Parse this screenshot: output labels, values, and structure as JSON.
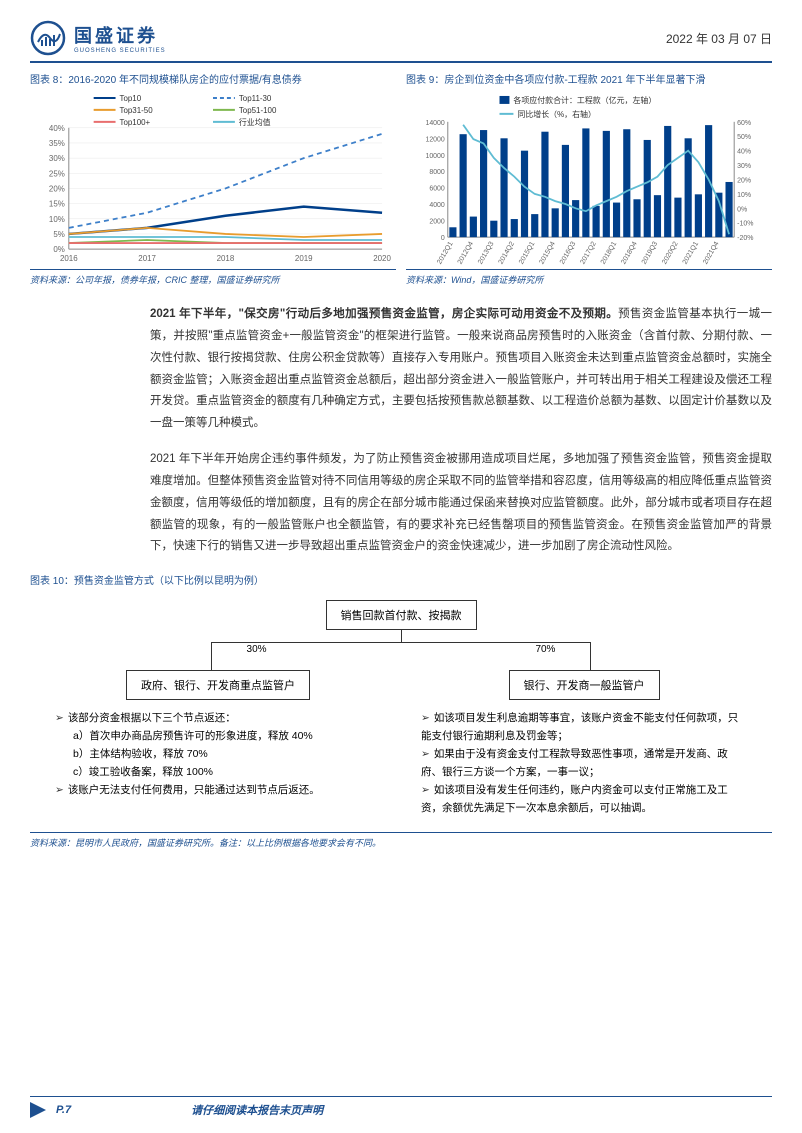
{
  "header": {
    "company": "国盛证券",
    "company_en": "GUOSHENG SECURITIES",
    "date": "2022 年 03 月 07 日"
  },
  "chart8": {
    "title": "图表 8：2016-2020 年不同规模梯队房企的应付票据/有息债券",
    "source": "资料来源：公司年报，债券年报，CRIC 整理，国盛证券研究所",
    "type": "line",
    "x": [
      "2016",
      "2017",
      "2018",
      "2019",
      "2020"
    ],
    "series": [
      {
        "name": "Top10",
        "color": "#003f8a",
        "width": 2.5,
        "values": [
          5,
          7,
          11,
          14,
          12
        ]
      },
      {
        "name": "Top11-30",
        "color": "#3d7fc9",
        "width": 1.8,
        "style": "dashed",
        "values": [
          7,
          12,
          20,
          30,
          38
        ]
      },
      {
        "name": "Top31-50",
        "color": "#e89c2e",
        "width": 1.8,
        "values": [
          5,
          7,
          5,
          4,
          5
        ]
      },
      {
        "name": "Top51-100",
        "color": "#7fb84f",
        "width": 1.8,
        "values": [
          2,
          3,
          2,
          2,
          2
        ]
      },
      {
        "name": "Top100+",
        "color": "#e86e6e",
        "width": 1.8,
        "values": [
          2,
          2,
          2,
          2,
          2
        ]
      },
      {
        "name": "行业均值",
        "color": "#5fbcd3",
        "width": 1.8,
        "values": [
          4,
          4,
          4,
          3,
          3
        ]
      }
    ],
    "ylim": [
      0,
      40
    ],
    "ystep": 5,
    "axis_color": "#888",
    "grid_color": "#e8e8e8",
    "label_fontsize": 8
  },
  "chart9": {
    "title": "图表 9：房企到位资金中各项应付款-工程款 2021 年下半年显著下滑",
    "source": "资料来源：Wind，国盛证券研究所",
    "type": "bar_line",
    "bar_name": "各项应付款合计：工程款（亿元，左轴）",
    "line_name": "同比增长（%，右轴）",
    "bar_color": "#003f8a",
    "line_color": "#5fbcd3",
    "x": [
      "2012Q1",
      "2012Q4",
      "2013Q3",
      "2014Q2",
      "2015Q1",
      "2015Q4",
      "2016Q3",
      "2017Q2",
      "2018Q1",
      "2018Q4",
      "2019Q3",
      "2020Q2",
      "2021Q1",
      "2021Q4"
    ],
    "bars": [
      1200,
      12500,
      2500,
      13000,
      2000,
      12000,
      2200,
      10500,
      2800,
      12800,
      3500,
      11200,
      4500,
      13200,
      3800,
      12900,
      4200,
      13100,
      4600,
      11800,
      5100,
      13500,
      4800,
      12000,
      5200,
      13600,
      5400,
      6700
    ],
    "line": [
      null,
      58,
      48,
      45,
      35,
      28,
      22,
      15,
      10,
      8,
      5,
      3,
      0,
      -2,
      2,
      5,
      8,
      12,
      15,
      18,
      22,
      30,
      35,
      40,
      32,
      20,
      5,
      -18
    ],
    "yleft": [
      0,
      14000
    ],
    "yleft_step": 2000,
    "yright": [
      -20,
      60
    ],
    "yright_step": 10,
    "axis_color": "#888",
    "label_fontsize": 7
  },
  "paragraph1_lead": "2021 年下半年，\"保交房\"行动后多地加强预售资金监管，房企实际可动用资金不及预期。",
  "paragraph1_body": "预售资金监管基本执行一城一策，并按照\"重点监管资金+一般监管资金\"的框架进行监管。一般来说商品房预售时的入账资金（含首付款、分期付款、一次性付款、银行按揭贷款、住房公积金贷款等）直接存入专用账户。预售项目入账资金未达到重点监管资金总额时，实施全额资金监管；入账资金超出重点监管资金总额后，超出部分资金进入一般监管账户，并可转出用于相关工程建设及偿还工程开发贷。重点监管资金的额度有几种确定方式，主要包括按预售款总额基数、以工程造价总额为基数、以固定计价基数以及一盘一策等几种模式。",
  "paragraph2": "2021 年下半年开始房企违约事件频发，为了防止预售资金被挪用造成项目烂尾，多地加强了预售资金监管，预售资金提取难度增加。但整体预售资金监管对待不同信用等级的房企采取不同的监管举措和容忍度，信用等级高的相应降低重点监管资金额度，信用等级低的增加额度，且有的房企在部分城市能通过保函来替换对应监管额度。此外，部分城市或者项目存在超额监管的现象，有的一般监管账户也全额监管，有的要求补充已经售罄项目的预售监管资金。在预售资金监管加严的背景下，快速下行的销售又进一步导致超出重点监管资金户的资金快速减少，进一步加剧了房企流动性风险。",
  "fig10": {
    "title": "图表 10：预售资金监管方式（以下比例以昆明为例）",
    "source": "资料来源：昆明市人民政府，国盛证券研究所。备注：以上比例根据各地要求会有不同。",
    "top_box": "销售回款首付款、按揭款",
    "pct_left": "30%",
    "pct_right": "70%",
    "left_box": "政府、银行、开发商重点监管户",
    "right_box": "银行、开发商一般监管户",
    "left_bullets": [
      {
        "t": "该部分资金根据以下三个节点返还：",
        "b": true
      },
      {
        "t": "a）首次申办商品房预售许可的形象进度，释放 40%"
      },
      {
        "t": "b）主体结构验收，释放 70%"
      },
      {
        "t": "c）竣工验收备案，释放 100%"
      },
      {
        "t": "该账户无法支付任何费用，只能通过达到节点后返还。",
        "b": true
      }
    ],
    "right_bullets": [
      {
        "t": "如该项目发生利息逾期等事宜，该账户资金不能支付任何款项，只能支付银行逾期利息及罚金等；",
        "b": true
      },
      {
        "t": "如果由于没有资金支付工程款导致恶性事项，通常是开发商、政府、银行三方谈一个方案，一事一议；",
        "b": true
      },
      {
        "t": "如该项目没有发生任何违约，账户内资金可以支付正常施工及工资，余额优先满足下一次本息余额后，可以抽调。",
        "b": true
      }
    ]
  },
  "footer": {
    "page": "P.7",
    "note": "请仔细阅读本报告末页声明"
  },
  "colors": {
    "brand": "#1e5090"
  }
}
